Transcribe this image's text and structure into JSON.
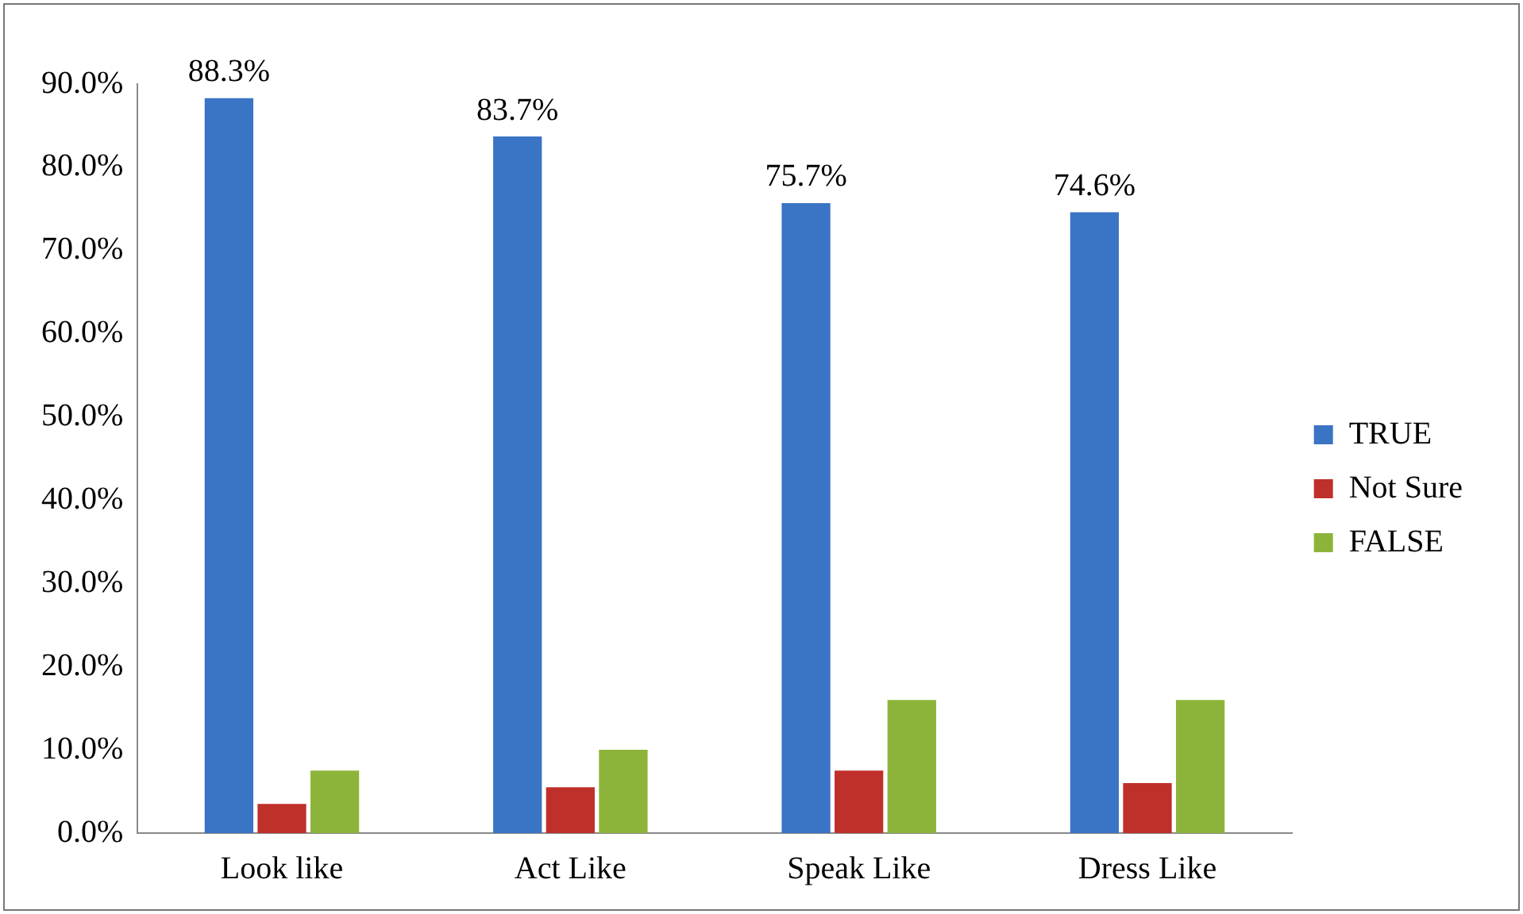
{
  "chart_data": {
    "type": "bar",
    "categories": [
      "Look like",
      "Act Like",
      "Speak Like",
      "Dress Like"
    ],
    "series": [
      {
        "name": "TRUE",
        "color": "#3a74c4",
        "values": [
          88.3,
          83.7,
          75.7,
          74.6
        ],
        "value_labels": [
          "88.3%",
          "83.7%",
          "75.7%",
          "74.6%"
        ]
      },
      {
        "name": "Not Sure",
        "color": "#c0302b",
        "values": [
          3.5,
          5.5,
          7.5,
          6
        ]
      },
      {
        "name": "FALSE",
        "color": "#8db43a",
        "values": [
          7.5,
          10,
          16,
          16
        ]
      }
    ],
    "ylim": [
      0,
      90
    ],
    "yticks": [
      {
        "value": 0,
        "label": "0.0%"
      },
      {
        "value": 10,
        "label": "10.0%"
      },
      {
        "value": 20,
        "label": "20.0%"
      },
      {
        "value": 30,
        "label": "30.0%"
      },
      {
        "value": 40,
        "label": "40.0%"
      },
      {
        "value": 50,
        "label": "50.0%"
      },
      {
        "value": 60,
        "label": "60.0%"
      },
      {
        "value": 70,
        "label": "70.0%"
      },
      {
        "value": 80,
        "label": "80.0%"
      },
      {
        "value": 90,
        "label": "90.0%"
      }
    ],
    "grid": false,
    "legend": "right"
  }
}
